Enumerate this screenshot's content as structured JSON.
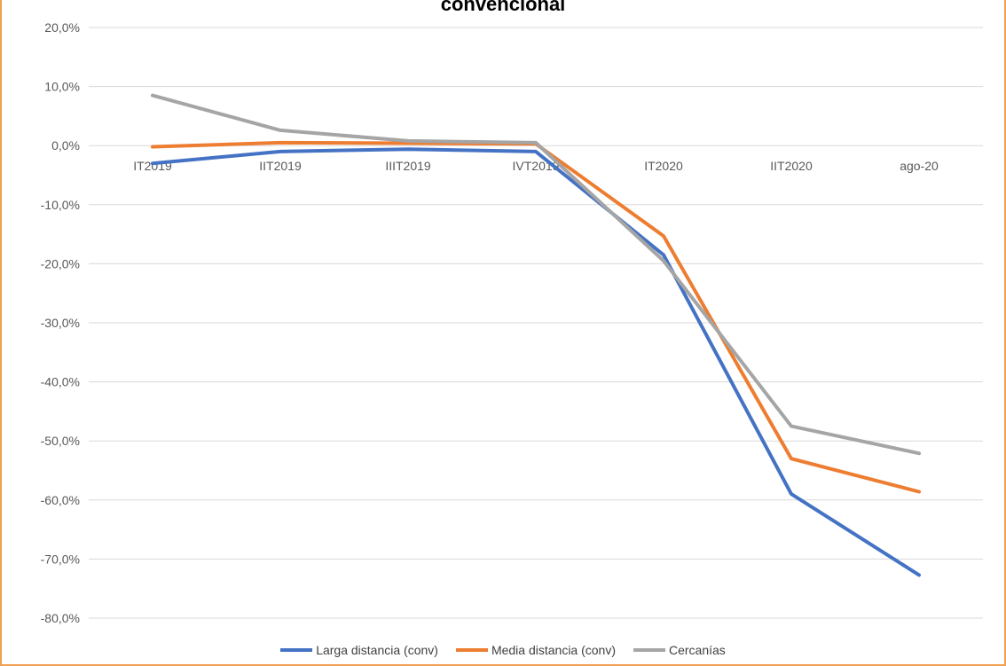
{
  "chart_data": {
    "type": "line",
    "title": "convencional",
    "categories": [
      "IT2019",
      "IIT2019",
      "IIIT2019",
      "IVT2019",
      "IT2020",
      "IIT2020",
      "ago-20"
    ],
    "y_ticks": [
      "20,0%",
      "10,0%",
      "0,0%",
      "-10,0%",
      "-20,0%",
      "-30,0%",
      "-40,0%",
      "-50,0%",
      "-60,0%",
      "-70,0%",
      "-80,0%"
    ],
    "ylim": [
      -80,
      20
    ],
    "y_unit": "%",
    "grid": true,
    "legend_position": "bottom",
    "series": [
      {
        "name": "Larga distancia (conv)",
        "color": "#4472c4",
        "values": [
          -3.0,
          -1.0,
          -0.6,
          -1.0,
          -18.5,
          -59.0,
          -72.7
        ]
      },
      {
        "name": "Media distancia (conv)",
        "color": "#ed7d31",
        "values": [
          -0.2,
          0.5,
          0.4,
          0.3,
          -15.3,
          -53.0,
          -58.6
        ]
      },
      {
        "name": "Cercanías",
        "color": "#a5a5a5",
        "values": [
          8.5,
          2.6,
          0.8,
          0.5,
          -19.5,
          -47.5,
          -52.1
        ]
      }
    ]
  }
}
